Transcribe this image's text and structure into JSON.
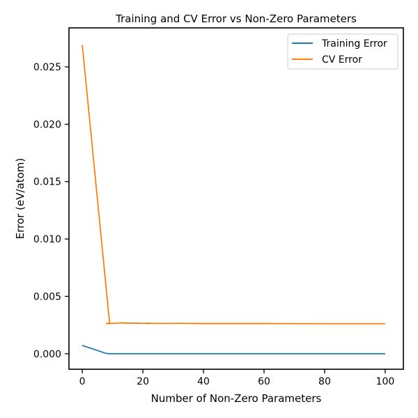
{
  "chart_data": {
    "type": "line",
    "title": "Training and CV Error vs Non-Zero Parameters",
    "xlabel": "Number of Non-Zero Parameters",
    "ylabel": "Error (eV/atom)",
    "xlim": [
      -4.4,
      106
    ],
    "ylim": [
      -0.00135,
      0.0284
    ],
    "xticks": [
      0,
      20,
      40,
      60,
      80,
      100
    ],
    "xtick_labels": [
      "0",
      "20",
      "40",
      "60",
      "80",
      "100"
    ],
    "yticks": [
      0.0,
      0.005,
      0.01,
      0.015,
      0.02,
      0.025
    ],
    "ytick_labels": [
      "0.000",
      "0.005",
      "0.010",
      "0.015",
      "0.020",
      "0.025"
    ],
    "grid": false,
    "legend_position": "top-right",
    "series": [
      {
        "name": "Training Error",
        "color": "#1f77b4",
        "x": [
          0,
          8,
          9,
          12,
          15,
          20,
          30,
          50,
          70,
          100
        ],
        "y": [
          0.00072,
          2e-05,
          0.0,
          0.0,
          0.0,
          0.0,
          0.0,
          0.0,
          0.0,
          0.0
        ]
      },
      {
        "name": "CV Error",
        "color": "#ff7f0e",
        "x": [
          0,
          9,
          8,
          10,
          12,
          14,
          15,
          13,
          16,
          18,
          20,
          22,
          21,
          25,
          30,
          31,
          40,
          60,
          80,
          100
        ],
        "y": [
          0.0269,
          0.0027,
          0.00262,
          0.00265,
          0.00268,
          0.00269,
          0.00266,
          0.00268,
          0.00267,
          0.00266,
          0.00265,
          0.00264,
          0.00266,
          0.00264,
          0.00264,
          0.00265,
          0.00263,
          0.00263,
          0.00262,
          0.00262
        ]
      }
    ]
  }
}
